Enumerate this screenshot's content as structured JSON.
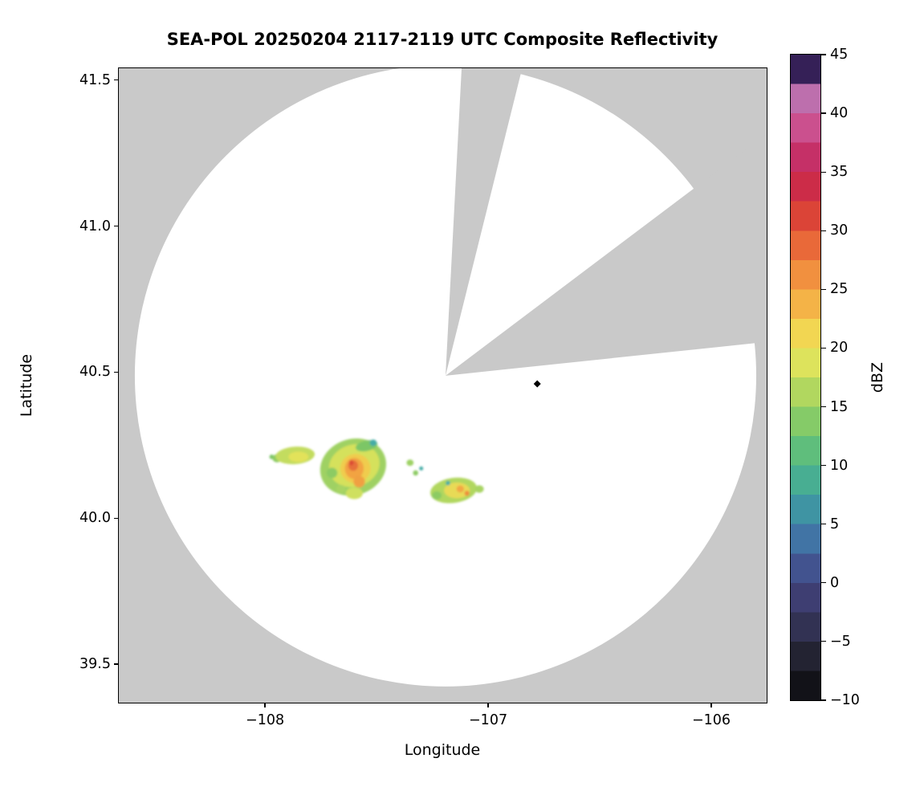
{
  "chart_data": {
    "type": "heatmap",
    "title": "SEA-POL 20250204 2117-2119 UTC Composite Reflectivity",
    "xlabel": "Longitude",
    "ylabel": "Latitude",
    "xlim": [
      -108.655,
      -105.752
    ],
    "ylim": [
      39.368,
      41.541
    ],
    "grid": false,
    "x_ticks": [
      {
        "value": -108,
        "label": "−108"
      },
      {
        "value": -107,
        "label": "−107"
      },
      {
        "value": -106,
        "label": "−106"
      }
    ],
    "y_ticks": [
      {
        "value": 41.5,
        "label": "41.5"
      },
      {
        "value": 41.0,
        "label": "41.0"
      },
      {
        "value": 40.5,
        "label": "40.5"
      },
      {
        "value": 40.0,
        "label": "40.0"
      },
      {
        "value": 39.5,
        "label": "39.5"
      }
    ],
    "radar": {
      "center_lon": -107.191,
      "center_lat": 40.488,
      "radius_lat_deg": 1.0646,
      "coverage_color": "#ffffff",
      "background_color": "#c9c9c9",
      "blocked_sectors": [
        {
          "az_from": 3,
          "az_to": 14
        },
        {
          "az_from": 53,
          "az_to": 84
        }
      ]
    },
    "marker": {
      "lon": -106.78,
      "lat": 40.46,
      "shape": "diamond",
      "color": "#000000"
    },
    "colorbar": {
      "label": "dBZ",
      "min": -10,
      "max": 45,
      "tick_step": 5,
      "ticks": [
        {
          "value": 45,
          "label": "45"
        },
        {
          "value": 40,
          "label": "40"
        },
        {
          "value": 35,
          "label": "35"
        },
        {
          "value": 30,
          "label": "30"
        },
        {
          "value": 25,
          "label": "25"
        },
        {
          "value": 20,
          "label": "20"
        },
        {
          "value": 15,
          "label": "15"
        },
        {
          "value": 10,
          "label": "10"
        },
        {
          "value": 5,
          "label": "5"
        },
        {
          "value": 0,
          "label": "0"
        },
        {
          "value": -5,
          "label": "−5"
        },
        {
          "value": -10,
          "label": "−10"
        }
      ],
      "segments": [
        {
          "from": -10,
          "to": -7.5,
          "color": "#121218"
        },
        {
          "from": -7.5,
          "to": -5,
          "color": "#232332"
        },
        {
          "from": -5,
          "to": -2.5,
          "color": "#323253"
        },
        {
          "from": -2.5,
          "to": 0,
          "color": "#3e3e72"
        },
        {
          "from": 0,
          "to": 2.5,
          "color": "#42538f"
        },
        {
          "from": 2.5,
          "to": 5,
          "color": "#4174a5"
        },
        {
          "from": 5,
          "to": 7.5,
          "color": "#3f94a3"
        },
        {
          "from": 7.5,
          "to": 10,
          "color": "#48ae92"
        },
        {
          "from": 10,
          "to": 12.5,
          "color": "#5fbe7c"
        },
        {
          "from": 12.5,
          "to": 15,
          "color": "#85cb68"
        },
        {
          "from": 15,
          "to": 17.5,
          "color": "#b1d75f"
        },
        {
          "from": 17.5,
          "to": 20,
          "color": "#dde35c"
        },
        {
          "from": 20,
          "to": 22.5,
          "color": "#f2d652"
        },
        {
          "from": 22.5,
          "to": 25,
          "color": "#f4b347"
        },
        {
          "from": 25,
          "to": 27.5,
          "color": "#f1903f"
        },
        {
          "from": 27.5,
          "to": 30,
          "color": "#e96939"
        },
        {
          "from": 30,
          "to": 32.5,
          "color": "#db4437"
        },
        {
          "from": 32.5,
          "to": 35,
          "color": "#cc2c48"
        },
        {
          "from": 35,
          "to": 37.5,
          "color": "#c53067"
        },
        {
          "from": 37.5,
          "to": 40,
          "color": "#cb508e"
        },
        {
          "from": 40,
          "to": 42.5,
          "color": "#bd6fad"
        },
        {
          "from": 42.5,
          "to": 45,
          "color": "#352057"
        }
      ]
    },
    "echo_cells": [
      {
        "lon": -107.97,
        "lat": 40.21,
        "rx": 0.01,
        "ry": 0.008,
        "rot": 0,
        "color": "#7cc666",
        "dbz": 10
      },
      {
        "lon": -107.946,
        "lat": 40.205,
        "rx": 0.02,
        "ry": 0.014,
        "rot": 0,
        "color": "#8ccb63",
        "dbz": 11
      },
      {
        "lon": -107.865,
        "lat": 40.215,
        "rx": 0.088,
        "ry": 0.03,
        "rot": -4,
        "color": "#c3dc5f",
        "dbz": 14
      },
      {
        "lon": -107.85,
        "lat": 40.21,
        "rx": 0.045,
        "ry": 0.018,
        "rot": 0,
        "color": "#e2e25a",
        "dbz": 17
      },
      {
        "lon": -107.605,
        "lat": 40.175,
        "rx": 0.15,
        "ry": 0.096,
        "rot": -18,
        "color": "#9fd164",
        "dbz": 12
      },
      {
        "lon": -107.6,
        "lat": 40.18,
        "rx": 0.115,
        "ry": 0.072,
        "rot": -18,
        "color": "#d5e15c",
        "dbz": 15
      },
      {
        "lon": -107.595,
        "lat": 40.17,
        "rx": 0.068,
        "ry": 0.05,
        "rot": -10,
        "color": "#f0cc4e",
        "dbz": 20
      },
      {
        "lon": -107.6,
        "lat": 40.17,
        "rx": 0.042,
        "ry": 0.036,
        "rot": 0,
        "color": "#f2a343",
        "dbz": 23
      },
      {
        "lon": -107.605,
        "lat": 40.18,
        "rx": 0.022,
        "ry": 0.018,
        "rot": 0,
        "color": "#e66f3a",
        "dbz": 27
      },
      {
        "lon": -107.613,
        "lat": 40.19,
        "rx": 0.01,
        "ry": 0.009,
        "rot": 0,
        "color": "#dc4b36",
        "dbz": 30
      },
      {
        "lon": -107.578,
        "lat": 40.125,
        "rx": 0.026,
        "ry": 0.02,
        "rot": 0,
        "color": "#f0a042",
        "dbz": 24
      },
      {
        "lon": -107.545,
        "lat": 40.248,
        "rx": 0.05,
        "ry": 0.018,
        "rot": -12,
        "color": "#7cc666",
        "dbz": 10
      },
      {
        "lon": -107.515,
        "lat": 40.258,
        "rx": 0.016,
        "ry": 0.011,
        "rot": 0,
        "color": "#45aca6",
        "dbz": 6
      },
      {
        "lon": -107.7,
        "lat": 40.155,
        "rx": 0.024,
        "ry": 0.018,
        "rot": 0,
        "color": "#8ccb63",
        "dbz": 11
      },
      {
        "lon": -107.6,
        "lat": 40.085,
        "rx": 0.038,
        "ry": 0.02,
        "rot": 0,
        "color": "#cfe05e",
        "dbz": 15
      },
      {
        "lon": -107.66,
        "lat": 40.1,
        "rx": 0.02,
        "ry": 0.014,
        "rot": 0,
        "color": "#a8d463",
        "dbz": 12
      },
      {
        "lon": -107.35,
        "lat": 40.19,
        "rx": 0.016,
        "ry": 0.011,
        "rot": 0,
        "color": "#9ed165",
        "dbz": 12
      },
      {
        "lon": -107.325,
        "lat": 40.155,
        "rx": 0.012,
        "ry": 0.009,
        "rot": 0,
        "color": "#8ccb63",
        "dbz": 11
      },
      {
        "lon": -107.3,
        "lat": 40.17,
        "rx": 0.009,
        "ry": 0.007,
        "rot": 0,
        "color": "#45aca6",
        "dbz": 6
      },
      {
        "lon": -107.155,
        "lat": 40.095,
        "rx": 0.105,
        "ry": 0.043,
        "rot": -8,
        "color": "#b1d75f",
        "dbz": 14
      },
      {
        "lon": -107.14,
        "lat": 40.095,
        "rx": 0.058,
        "ry": 0.027,
        "rot": 0,
        "color": "#e8da57",
        "dbz": 17
      },
      {
        "lon": -107.125,
        "lat": 40.1,
        "rx": 0.017,
        "ry": 0.012,
        "rot": 0,
        "color": "#f2a845",
        "dbz": 23
      },
      {
        "lon": -107.095,
        "lat": 40.085,
        "rx": 0.011,
        "ry": 0.009,
        "rot": 0,
        "color": "#ee8e3e",
        "dbz": 25
      },
      {
        "lon": -107.23,
        "lat": 40.078,
        "rx": 0.022,
        "ry": 0.014,
        "rot": 0,
        "color": "#8ccb63",
        "dbz": 11
      },
      {
        "lon": -107.04,
        "lat": 40.1,
        "rx": 0.02,
        "ry": 0.013,
        "rot": 0,
        "color": "#a8d463",
        "dbz": 12
      },
      {
        "lon": -107.18,
        "lat": 40.12,
        "rx": 0.01,
        "ry": 0.008,
        "rot": 0,
        "color": "#45aca6",
        "dbz": 6
      }
    ]
  }
}
